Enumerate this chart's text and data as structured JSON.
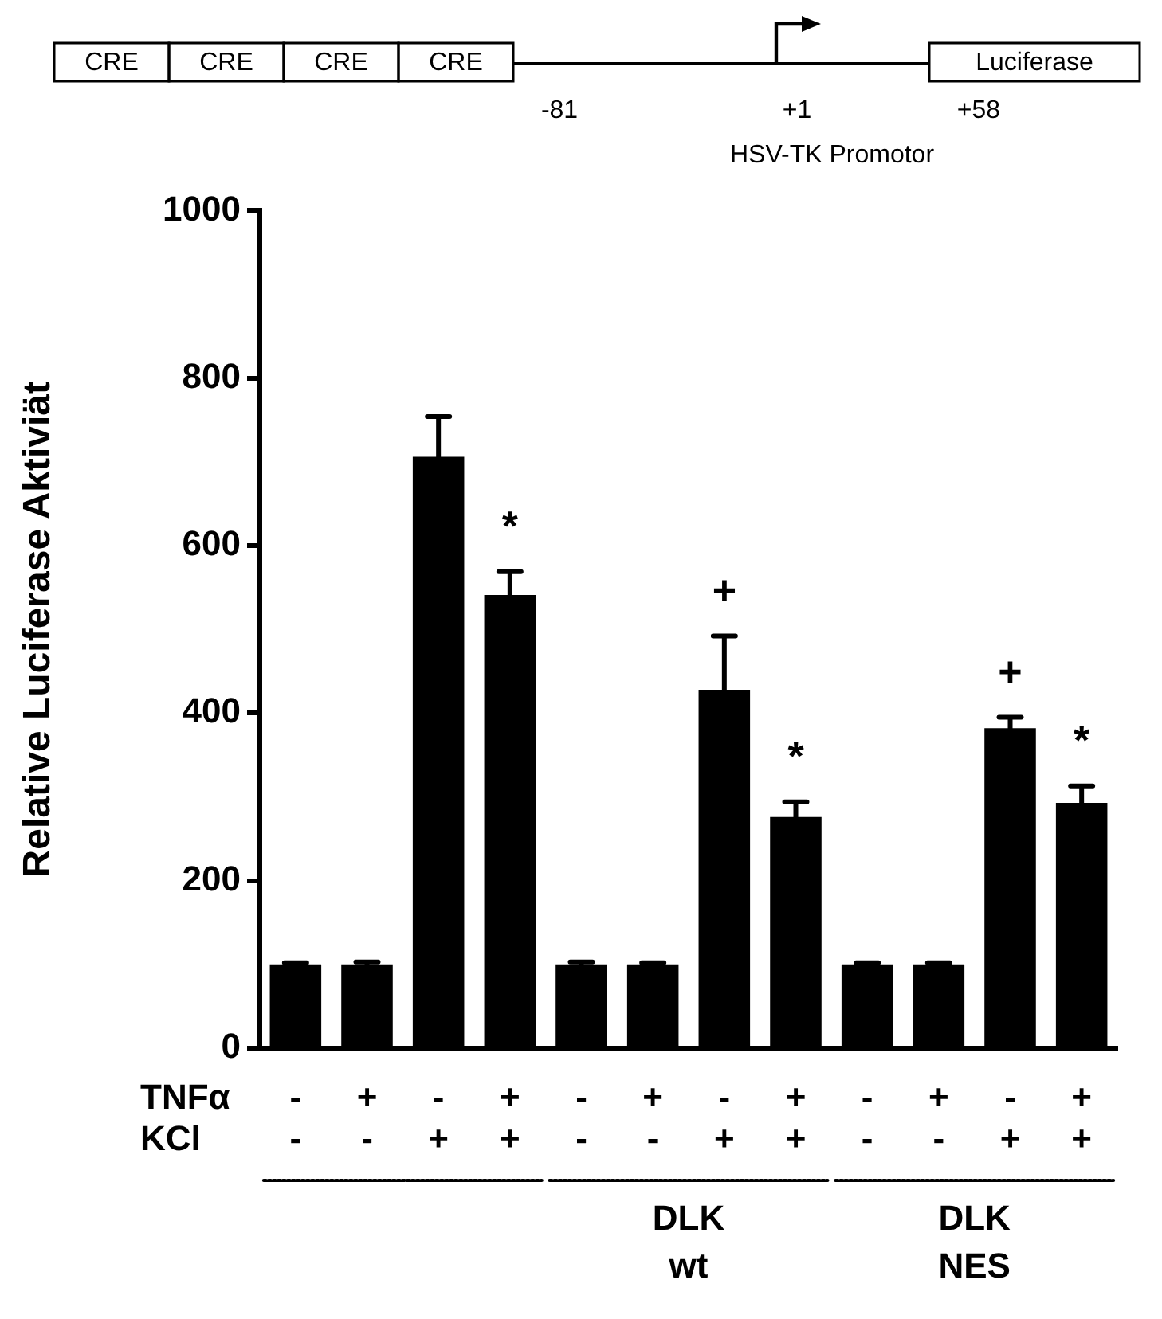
{
  "chart_data": {
    "type": "bar",
    "ylabel": "Relative Luciferase Aktiviät",
    "categories": [
      "-\n-",
      "+\n-",
      "-\n+",
      "+\n+",
      "-\n-",
      "+\n-",
      "-\n+",
      "+\n+",
      "-\n-",
      "+\n-",
      "-\n+",
      "+\n+"
    ],
    "values": [
      100,
      100,
      706,
      541,
      100,
      100,
      428,
      276,
      100,
      100,
      382,
      293
    ],
    "errors": [
      2,
      3,
      48,
      28,
      3,
      2,
      64,
      18,
      2,
      2,
      13,
      20
    ],
    "value_labels": [
      null,
      null,
      null,
      "*",
      null,
      null,
      "+",
      "*",
      null,
      null,
      "+",
      "*"
    ],
    "color": "#000000",
    "ylim": [
      0,
      1000
    ],
    "yticks": [
      0,
      200,
      400,
      600,
      800,
      1000
    ],
    "grid": false,
    "annotations": [
      "CRE",
      "CRE",
      "CRE",
      "CRE",
      "Luciferase",
      "-81",
      "+1",
      "+58",
      "HSV-TK Promotor",
      "TNFα",
      "KCl",
      "DLK\nwt",
      "DLK\nNES"
    ]
  }
}
